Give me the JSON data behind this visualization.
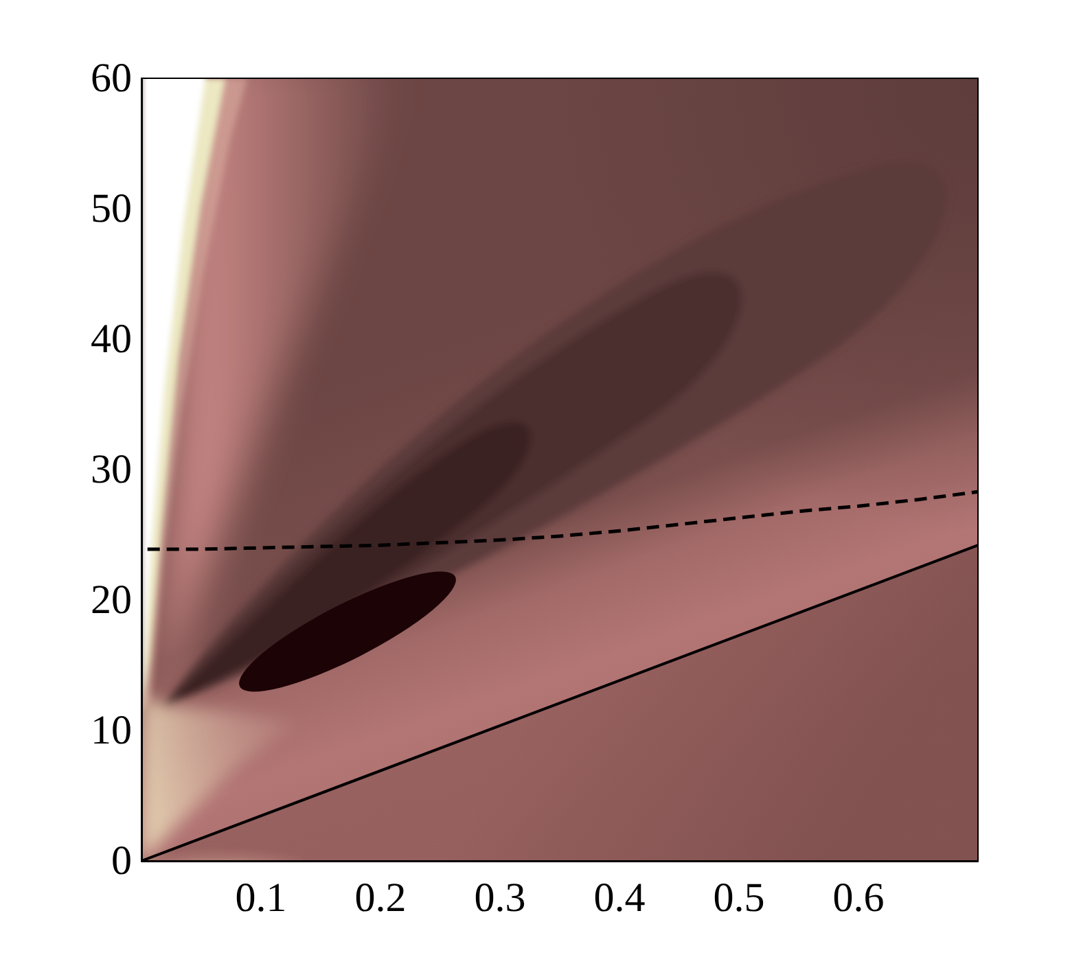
{
  "chart_data": {
    "type": "line",
    "xlim": [
      0,
      0.7
    ],
    "xticks": [
      0.1,
      0.2,
      0.3,
      0.4,
      0.5,
      0.6
    ],
    "ylim": [
      0,
      60
    ],
    "yticks": [
      0,
      10,
      20,
      30,
      40,
      50,
      60
    ],
    "marker": "none",
    "series": [
      {
        "color": "#000000",
        "line_style": "solid",
        "x": [
          0,
          0.7
        ],
        "values": [
          0,
          24.2
        ]
      },
      {
        "color": "#000000",
        "line_style": "dashed",
        "x": [
          0.005,
          0.05,
          0.1,
          0.15,
          0.2,
          0.25,
          0.3,
          0.35,
          0.4,
          0.45,
          0.5,
          0.55,
          0.6,
          0.65,
          0.7
        ],
        "values": [
          23.9,
          23.9,
          24.0,
          24.1,
          24.2,
          24.4,
          24.6,
          24.9,
          25.3,
          25.8,
          26.3,
          26.8,
          27.2,
          27.7,
          28.3
        ]
      }
    ]
  }
}
